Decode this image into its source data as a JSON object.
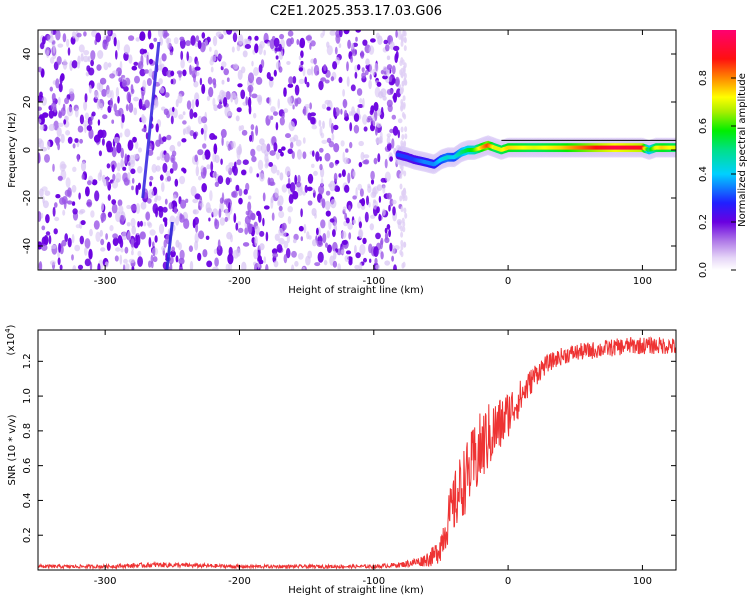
{
  "title": "C2E1.2025.353.17.03.G06",
  "chart_data": [
    {
      "type": "heatmap",
      "xlabel": "Height of straight line (km)",
      "ylabel": "Frequency (Hz)",
      "xlim": [
        -350,
        125
      ],
      "ylim": [
        -50,
        50
      ],
      "x_ticks": [
        -300,
        -200,
        -100,
        0,
        100
      ],
      "y_ticks": [
        -40,
        -20,
        0,
        20,
        40
      ],
      "noise_region_x": [
        -350,
        -80
      ],
      "signal_track": {
        "x": [
          -82,
          -75,
          -70,
          -62,
          -55,
          -50,
          -45,
          -40,
          -35,
          -30,
          -25,
          -20,
          -15,
          -10,
          -5,
          0,
          20,
          40,
          60,
          80,
          100,
          105,
          110,
          115,
          125
        ],
        "freq": [
          -2,
          -3,
          -4,
          -5,
          -6,
          -4,
          -3,
          -3,
          -1,
          0,
          0,
          1,
          2,
          1,
          0,
          1,
          1,
          1,
          1,
          1,
          1,
          0,
          1,
          1,
          1
        ],
        "amplitude": [
          0.3,
          0.3,
          0.3,
          0.35,
          0.35,
          0.4,
          0.45,
          0.4,
          0.5,
          0.55,
          0.6,
          0.75,
          0.85,
          0.7,
          0.7,
          0.75,
          0.7,
          0.75,
          0.85,
          0.95,
          0.9,
          0.5,
          0.7,
          0.75,
          0.7
        ]
      },
      "colorbar": {
        "label": "Normalized spectral amplitude",
        "range": [
          0,
          1
        ],
        "ticks": [
          "0.0",
          "0.2",
          "0.4",
          "0.6",
          "0.8"
        ]
      }
    },
    {
      "type": "line",
      "xlabel": "Height of straight line (km)",
      "ylabel": "SNR (10 * v/v)",
      "scale_label": "(x10",
      "scale_exponent": "4",
      "scale_close": ")",
      "xlim": [
        -350,
        125
      ],
      "ylim": [
        0,
        1.38
      ],
      "x_ticks": [
        -300,
        -200,
        -100,
        0,
        100
      ],
      "y_ticks": [
        "0.2",
        "0.4",
        "0.6",
        "0.8",
        "1.0",
        "1.2"
      ],
      "series": [
        {
          "name": "SNR",
          "color": "#ee3333",
          "x": [
            -350,
            -300,
            -260,
            -200,
            -150,
            -100,
            -80,
            -65,
            -55,
            -50,
            -45,
            -40,
            -35,
            -30,
            -25,
            -20,
            -15,
            -10,
            -5,
            0,
            5,
            10,
            15,
            20,
            25,
            30,
            35,
            40,
            50,
            60,
            70,
            80,
            90,
            100,
            110,
            120,
            125
          ],
          "y": [
            0.02,
            0.02,
            0.03,
            0.02,
            0.02,
            0.02,
            0.03,
            0.05,
            0.08,
            0.15,
            0.28,
            0.38,
            0.48,
            0.55,
            0.62,
            0.7,
            0.76,
            0.8,
            0.84,
            0.9,
            0.95,
            1.0,
            1.06,
            1.12,
            1.16,
            1.19,
            1.21,
            1.23,
            1.25,
            1.26,
            1.27,
            1.28,
            1.29,
            1.29,
            1.29,
            1.29,
            1.28
          ],
          "noise_amplitude": [
            0.01,
            0.01,
            0.015,
            0.01,
            0.01,
            0.01,
            0.015,
            0.03,
            0.06,
            0.1,
            0.14,
            0.18,
            0.2,
            0.2,
            0.22,
            0.22,
            0.2,
            0.18,
            0.16,
            0.14,
            0.12,
            0.1,
            0.08,
            0.07,
            0.06,
            0.05,
            0.05,
            0.05,
            0.05,
            0.05,
            0.05,
            0.05,
            0.05,
            0.05,
            0.05,
            0.05,
            0.05
          ]
        }
      ]
    }
  ]
}
